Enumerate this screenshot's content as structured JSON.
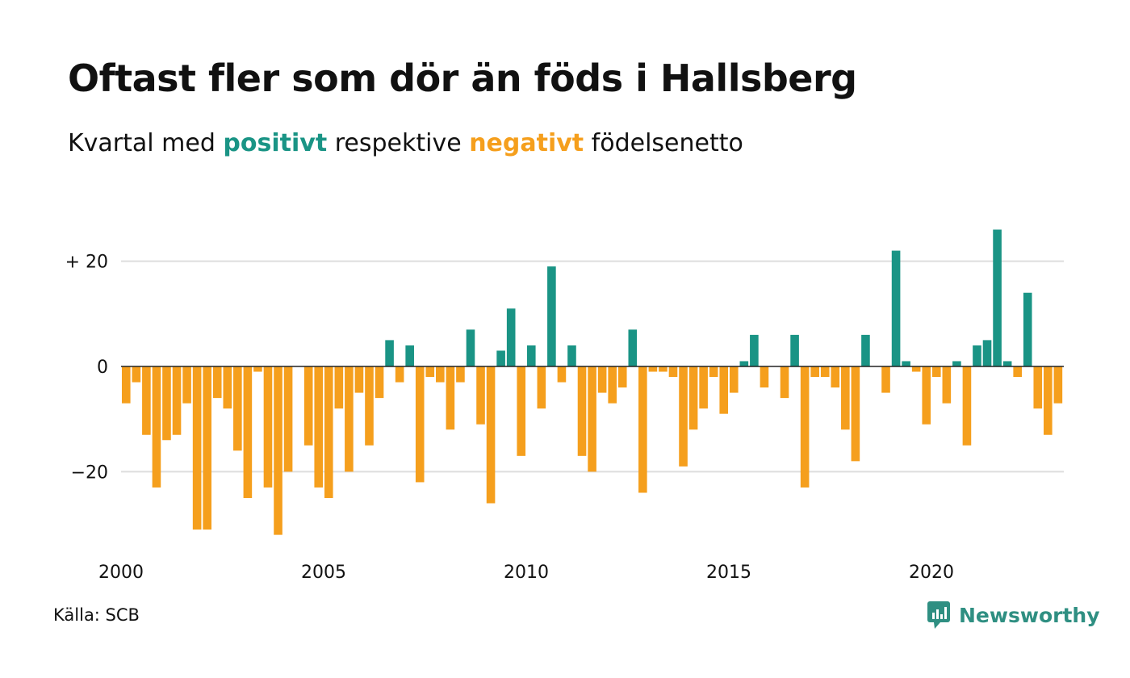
{
  "title": "Oftast fler som dör än föds i Hallsberg",
  "subtitle": {
    "prefix": "Kvartal med ",
    "positive_word": "positivt",
    "middle": " respektive ",
    "negative_word": "negativt",
    "suffix": " födelsenetto"
  },
  "source": "Källa: SCB",
  "brand": {
    "name": "Newsworthy",
    "icon": "newsworthy-logo-icon"
  },
  "colors": {
    "positive": "#1a9485",
    "negative": "#f59f1d",
    "grid": "#dddddd",
    "zero_line": "#222222",
    "text": "#111111"
  },
  "chart_data": {
    "type": "bar",
    "title": "Oftast fler som dör än föds i Hallsberg",
    "xlabel": "",
    "ylabel": "",
    "ylim": [
      -35,
      30
    ],
    "yticks": [
      {
        "value": 20,
        "label": "+ 20"
      },
      {
        "value": 0,
        "label": "0"
      },
      {
        "value": -20,
        "label": "−20"
      }
    ],
    "xticks": [
      {
        "value": 2000,
        "label": "2000"
      },
      {
        "value": 2005,
        "label": "2005"
      },
      {
        "value": 2010,
        "label": "2010"
      },
      {
        "value": 2015,
        "label": "2015"
      },
      {
        "value": 2020,
        "label": "2020"
      }
    ],
    "grid": true,
    "start_year": 2000,
    "periods_per_year": 4,
    "values": [
      -7,
      -3,
      -13,
      -23,
      -14,
      -13,
      -7,
      -31,
      -31,
      -6,
      -8,
      -16,
      -25,
      -1,
      -23,
      -32,
      -20,
      0,
      -15,
      -23,
      -25,
      -8,
      -20,
      -5,
      -15,
      -6,
      5,
      -3,
      4,
      -22,
      -2,
      -3,
      -12,
      -3,
      7,
      -11,
      -26,
      3,
      11,
      -17,
      4,
      -8,
      19,
      -3,
      4,
      -17,
      -20,
      -5,
      -7,
      -4,
      7,
      -24,
      -1,
      -1,
      -2,
      -19,
      -12,
      -8,
      -2,
      -9,
      -5,
      1,
      6,
      -4,
      0,
      -6,
      6,
      -23,
      -2,
      -2,
      -4,
      -12,
      -18,
      6,
      0,
      -5,
      22,
      1,
      -1,
      -11,
      -2,
      -7,
      1,
      -15,
      4,
      5,
      26,
      1,
      -2,
      14,
      -8,
      -13,
      -7
    ]
  }
}
